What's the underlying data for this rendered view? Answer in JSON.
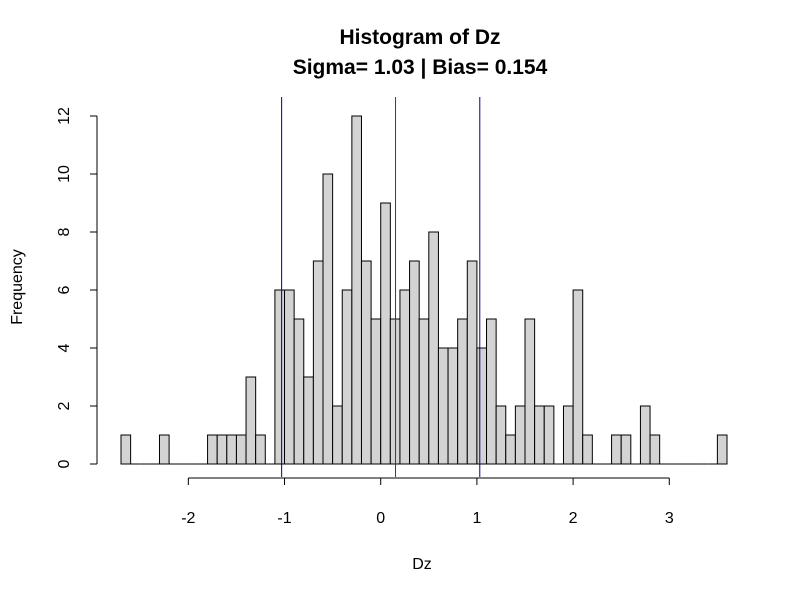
{
  "chart_data": {
    "type": "bar",
    "title": "Histogram of Dz",
    "subtitle": "Sigma= 1.03 | Bias= 0.154",
    "xlabel": "Dz",
    "ylabel": "Frequency",
    "bin_start": -2.7,
    "bin_width": 0.1,
    "values": [
      1,
      0,
      0,
      0,
      1,
      0,
      0,
      0,
      0,
      1,
      1,
      1,
      1,
      3,
      1,
      0,
      6,
      6,
      5,
      3,
      7,
      10,
      2,
      6,
      12,
      7,
      5,
      9,
      5,
      6,
      7,
      5,
      8,
      4,
      4,
      5,
      7,
      4,
      5,
      2,
      1,
      2,
      5,
      2,
      2,
      0,
      2,
      6,
      1,
      0,
      0,
      1,
      1,
      0,
      2,
      1,
      0,
      0,
      0,
      0,
      0,
      0,
      1
    ],
    "xlim": [
      -2.7,
      3.6
    ],
    "ylim": [
      0,
      12
    ],
    "x_ticks": [
      -2,
      -1,
      0,
      1,
      2,
      3
    ],
    "x_tick_labels": [
      "-2",
      "-1",
      "0",
      "1",
      "2",
      "3"
    ],
    "y_ticks": [
      0,
      2,
      4,
      6,
      8,
      10,
      12
    ],
    "y_tick_labels": [
      "0",
      "2",
      "4",
      "6",
      "8",
      "10",
      "12"
    ],
    "bar_color": "#d3d3d3",
    "vertical_lines": [
      {
        "x": 0.154,
        "color": "#cc0000"
      },
      {
        "x": -1.03,
        "color": "#00008b"
      },
      {
        "x": 1.03,
        "color": "#00008b"
      }
    ]
  }
}
